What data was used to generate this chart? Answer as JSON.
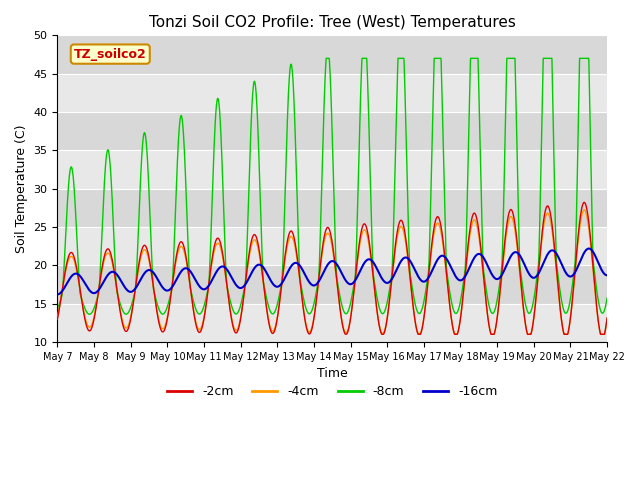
{
  "title": "Tonzi Soil CO2 Profile: Tree (West) Temperatures",
  "xlabel": "Time",
  "ylabel": "Soil Temperature (C)",
  "ylim": [
    10,
    50
  ],
  "xlim": [
    0,
    360
  ],
  "legend_label": "TZ_soilco2",
  "series_labels": [
    "-2cm",
    "-4cm",
    "-8cm",
    "-16cm"
  ],
  "series_colors": [
    "#dd0000",
    "#ff9900",
    "#00cc00",
    "#0000cc"
  ],
  "x_tick_labels": [
    "May 7",
    "May 8",
    "May 9",
    "May 10",
    "May 11",
    "May 12",
    "May 13",
    "May 14",
    "May 15",
    "May 16",
    "May 17",
    "May 18",
    "May 19",
    "May 20",
    "May 21",
    "May 22"
  ],
  "x_tick_positions": [
    0,
    24,
    48,
    72,
    96,
    120,
    144,
    168,
    192,
    216,
    240,
    264,
    288,
    312,
    336,
    360
  ],
  "band_color_light": "#e8e8e8",
  "band_color_dark": "#d8d8d8",
  "title_fontsize": 11,
  "axis_fontsize": 9,
  "tick_fontsize": 8,
  "legend_fontsize": 9
}
